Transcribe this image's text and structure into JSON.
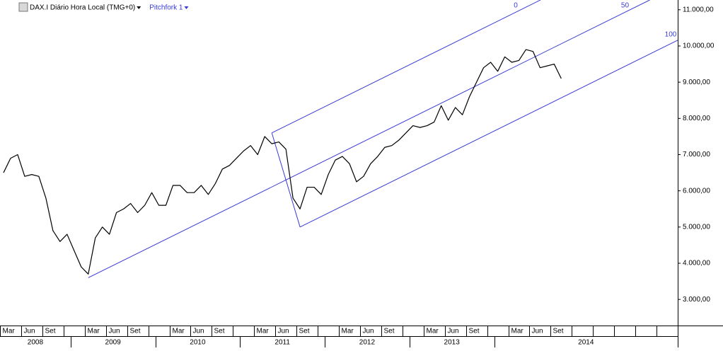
{
  "chart_data": {
    "type": "line",
    "title": "DAX.I Diário Hora Local (TMG+0)",
    "color": "#000000",
    "x": [
      "2008-03",
      "2008-04",
      "2008-05",
      "2008-06",
      "2008-07",
      "2008-08",
      "2008-09",
      "2008-10",
      "2008-11",
      "2008-12",
      "2009-01",
      "2009-02",
      "2009-03",
      "2009-04",
      "2009-05",
      "2009-06",
      "2009-07",
      "2009-08",
      "2009-09",
      "2009-10",
      "2009-11",
      "2009-12",
      "2010-01",
      "2010-02",
      "2010-03",
      "2010-04",
      "2010-05",
      "2010-06",
      "2010-07",
      "2010-08",
      "2010-09",
      "2010-10",
      "2010-11",
      "2010-12",
      "2011-01",
      "2011-02",
      "2011-03",
      "2011-04",
      "2011-05",
      "2011-06",
      "2011-07",
      "2011-08",
      "2011-09",
      "2011-10",
      "2011-11",
      "2011-12",
      "2012-01",
      "2012-02",
      "2012-03",
      "2012-04",
      "2012-05",
      "2012-06",
      "2012-07",
      "2012-08",
      "2012-09",
      "2012-10",
      "2012-11",
      "2012-12",
      "2013-01",
      "2013-02",
      "2013-03",
      "2013-04",
      "2013-05",
      "2013-06",
      "2013-07",
      "2013-08",
      "2013-09",
      "2013-10",
      "2013-11",
      "2013-12",
      "2014-01",
      "2014-02",
      "2014-03",
      "2014-04",
      "2014-05",
      "2014-06",
      "2014-07",
      "2014-08",
      "2014-09",
      "2014-10"
    ],
    "values": [
      6500,
      6900,
      7000,
      6400,
      6450,
      6400,
      5800,
      4900,
      4600,
      4800,
      4350,
      3900,
      3700,
      4700,
      5000,
      4800,
      5400,
      5500,
      5650,
      5400,
      5600,
      5950,
      5600,
      5600,
      6150,
      6150,
      5950,
      5950,
      6150,
      5900,
      6200,
      6600,
      6700,
      6900,
      7100,
      7250,
      7000,
      7500,
      7300,
      7350,
      7150,
      5800,
      5500,
      6100,
      6100,
      5900,
      6450,
      6850,
      6950,
      6750,
      6250,
      6400,
      6750,
      6950,
      7200,
      7250,
      7400,
      7600,
      7800,
      7750,
      7800,
      7900,
      8350,
      7950,
      8300,
      8100,
      8600,
      9000,
      9400,
      9550,
      9300,
      9700,
      9550,
      9600,
      9900,
      9850,
      9400,
      9450,
      9500,
      9100
    ],
    "xlim": [
      "2008-03",
      "2016-03"
    ],
    "xticks": [
      {
        "value": "2008-03",
        "label": "Mar"
      },
      {
        "value": "2008-06",
        "label": "Jun"
      },
      {
        "value": "2008-09",
        "label": "Set"
      },
      {
        "value": "2009-03",
        "label": "Mar"
      },
      {
        "value": "2009-06",
        "label": "Jun"
      },
      {
        "value": "2009-09",
        "label": "Set"
      },
      {
        "value": "2010-03",
        "label": "Mar"
      },
      {
        "value": "2010-06",
        "label": "Jun"
      },
      {
        "value": "2010-09",
        "label": "Set"
      },
      {
        "value": "2011-03",
        "label": "Mar"
      },
      {
        "value": "2011-06",
        "label": "Jun"
      },
      {
        "value": "2011-09",
        "label": "Set"
      },
      {
        "value": "2012-03",
        "label": "Mar"
      },
      {
        "value": "2012-06",
        "label": "Jun"
      },
      {
        "value": "2012-09",
        "label": "Set"
      },
      {
        "value": "2013-03",
        "label": "Mar"
      },
      {
        "value": "2013-06",
        "label": "Jun"
      },
      {
        "value": "2013-09",
        "label": "Set"
      },
      {
        "value": "2014-03",
        "label": "Mar"
      },
      {
        "value": "2014-06",
        "label": "Jun"
      },
      {
        "value": "2014-09",
        "label": "Set"
      }
    ],
    "years": [
      "2008",
      "2009",
      "2010",
      "2011",
      "2012",
      "2013",
      "2014"
    ],
    "ylim": [
      2280,
      11270
    ],
    "yticks": [
      {
        "value": 3000,
        "label": "3.000,00"
      },
      {
        "value": 4000,
        "label": "4.000,00"
      },
      {
        "value": 5000,
        "label": "5.000,00"
      },
      {
        "value": 6000,
        "label": "6.000,00"
      },
      {
        "value": 7000,
        "label": "7.000,00"
      },
      {
        "value": 8000,
        "label": "8.000,00"
      },
      {
        "value": 9000,
        "label": "9.000,00"
      },
      {
        "value": 10000,
        "label": "10.000,00"
      },
      {
        "value": 11000,
        "label": "11.000,00"
      }
    ],
    "pitchfork": {
      "name": "Pitchfork 1",
      "color": "#3a3ad6",
      "levels": [
        0,
        50,
        100
      ],
      "pivots": [
        {
          "x": "2009-03",
          "y": 3600
        },
        {
          "x": "2011-05",
          "y": 7600
        },
        {
          "x": "2011-09",
          "y": 5000
        }
      ]
    }
  }
}
